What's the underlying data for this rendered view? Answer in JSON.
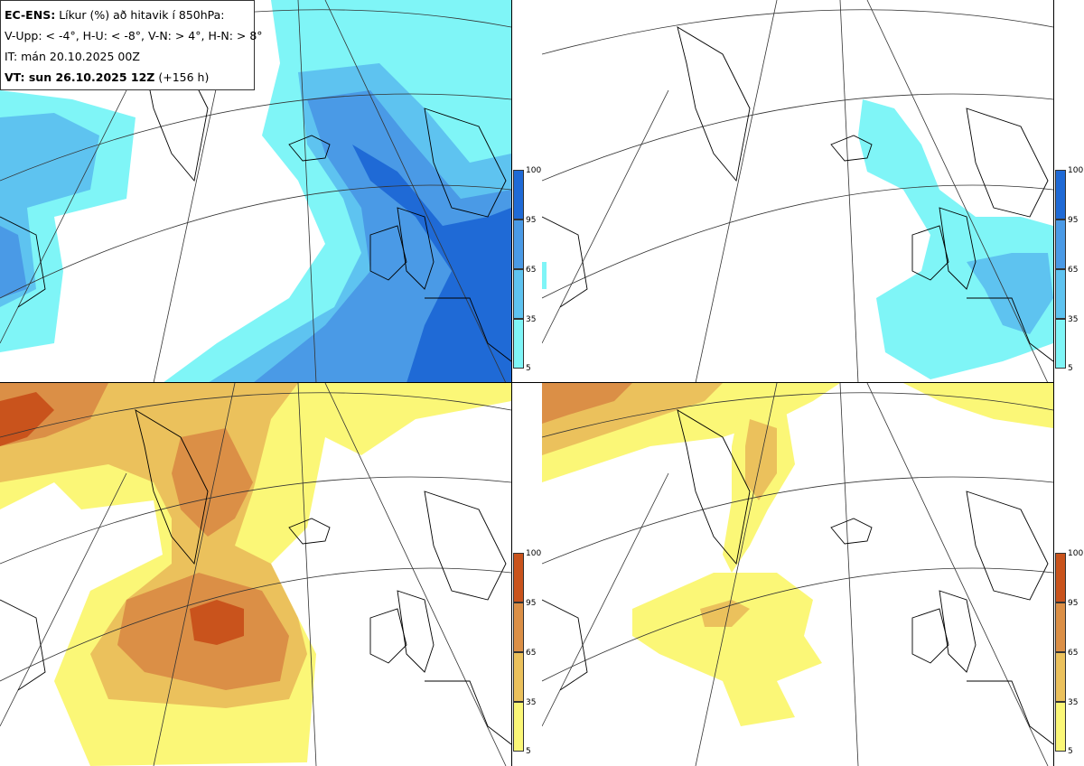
{
  "header": {
    "model": "EC-ENS:",
    "title": "Líkur (%) að hitavik í 850hPa:",
    "thresholds": "V-Upp: < -4°, H-U: < -8°, V-N: > 4°, H-N: > 8°",
    "init_time": "IT: mán 20.10.2025 00Z",
    "valid_label": "VT: sun 26.10.2025 12Z",
    "lead_time": "(+156 h)"
  },
  "panels": [
    {
      "id": "v-upp",
      "scheme": "cold"
    },
    {
      "id": "h-u",
      "scheme": "cold"
    },
    {
      "id": "v-n",
      "scheme": "warm"
    },
    {
      "id": "h-n",
      "scheme": "warm"
    }
  ],
  "colorbar": {
    "ticks": [
      "100",
      "95",
      "65",
      "35",
      "5"
    ],
    "cold_colors": [
      "#1f6ad6",
      "#4a9ae6",
      "#5ec3f0",
      "#7ff5f7"
    ],
    "warm_colors": [
      "#c9531c",
      "#db8f46",
      "#ebc15c",
      "#fbf777"
    ]
  }
}
